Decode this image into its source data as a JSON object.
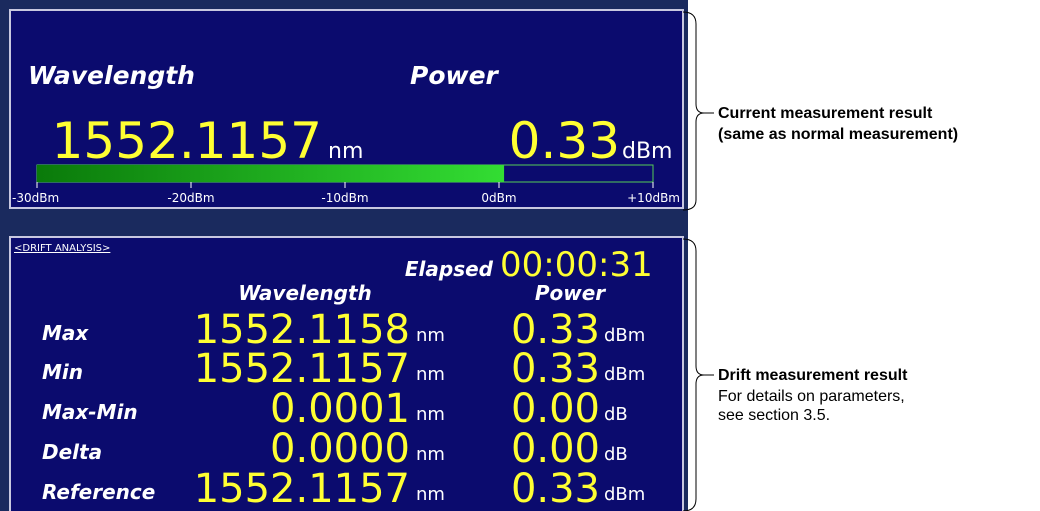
{
  "current": {
    "wavelength_label": "Wavelength",
    "power_label": "Power",
    "wavelength": "1552.1157",
    "wavelength_unit": "nm",
    "power": "0.33",
    "power_unit": "dBm",
    "meter": {
      "range": [
        -30,
        10
      ],
      "value": 0.33,
      "ticks": [
        {
          "value": -30,
          "label": "-30dBm"
        },
        {
          "value": -20,
          "label": "-20dBm"
        },
        {
          "value": -10,
          "label": "-10dBm"
        },
        {
          "value": 0,
          "label": "0dBm"
        },
        {
          "value": 10,
          "label": "+10dBm"
        }
      ]
    }
  },
  "drift": {
    "title": "<DRIFT ANALYSIS>",
    "elapsed_label": "Elapsed",
    "elapsed": "00:00:31",
    "headers": [
      "Wavelength",
      "Power"
    ],
    "rows": [
      {
        "label": "Max",
        "wavelength": "1552.1158",
        "wavelength_unit": "nm",
        "power": "0.33",
        "power_unit": "dBm"
      },
      {
        "label": "Min",
        "wavelength": "1552.1157",
        "wavelength_unit": "nm",
        "power": "0.33",
        "power_unit": "dBm"
      },
      {
        "label": "Max-Min",
        "wavelength": "0.0001",
        "wavelength_unit": "nm",
        "power": "0.00",
        "power_unit": "dB"
      },
      {
        "label": "Delta",
        "wavelength": "0.0000",
        "wavelength_unit": "nm",
        "power": "0.00",
        "power_unit": "dB"
      },
      {
        "label": "Reference",
        "wavelength": "1552.1157",
        "wavelength_unit": "nm",
        "power": "0.33",
        "power_unit": "dBm"
      }
    ]
  },
  "annotations": [
    {
      "title": "Current measurement result",
      "lines": [
        "(same as normal measurement)"
      ]
    },
    {
      "title": "Drift measurement result",
      "lines": [
        "For details on parameters,",
        "see section 3.5."
      ]
    }
  ]
}
